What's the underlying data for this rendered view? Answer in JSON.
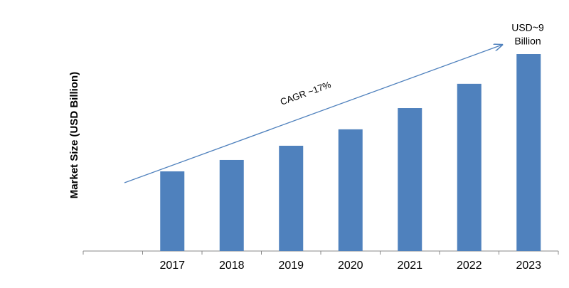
{
  "chart_data": {
    "type": "bar",
    "y_axis_label": "Market Size (USD Billion)",
    "categories": [
      null,
      "2017",
      "2018",
      "2019",
      "2020",
      "2021",
      "2022",
      "2023"
    ],
    "values": [
      null,
      3.64,
      4.16,
      4.81,
      5.56,
      6.53,
      7.64,
      9
    ],
    "color": "#4f81bd",
    "annotations": {
      "cagr": "CAGR ~17%",
      "end_value": [
        "USD~9",
        "Billion"
      ]
    }
  }
}
